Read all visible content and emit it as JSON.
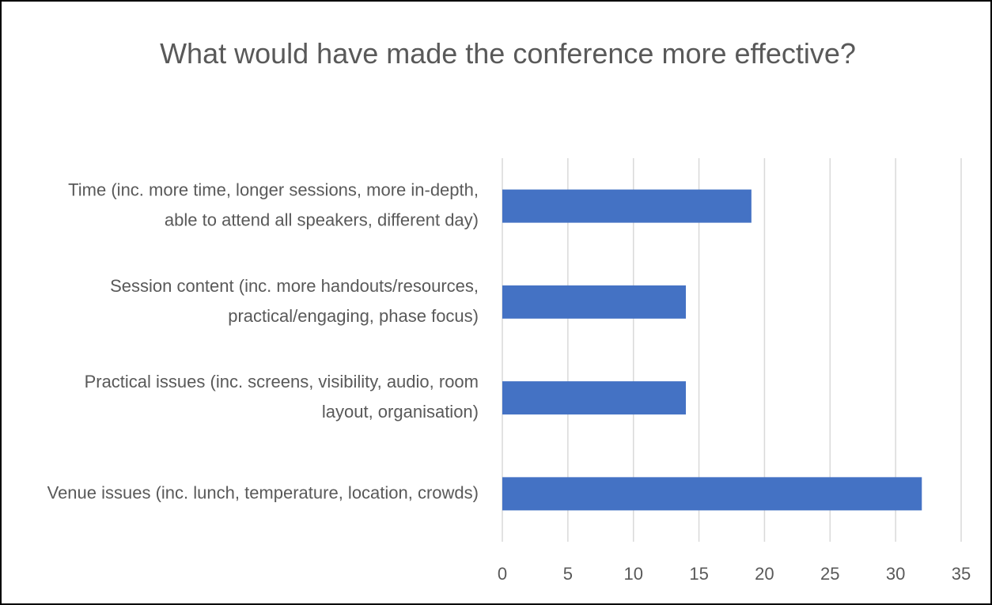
{
  "chart_data": {
    "type": "bar",
    "orientation": "horizontal",
    "title": "What would have made the conference more effective?",
    "categories": [
      "Time (inc. more time, longer sessions, more in-depth, able to attend all speakers, different day)",
      "Session content (inc. more handouts/resources, practical/engaging, phase focus)",
      "Practical issues (inc. screens, visibility, audio, room layout, organisation)",
      "Venue issues (inc. lunch, temperature, location, crowds)"
    ],
    "values": [
      19,
      14,
      14,
      32
    ],
    "color": "#4472c4",
    "xlim": [
      0,
      35
    ],
    "xticks": [
      0,
      5,
      10,
      15,
      20,
      25,
      30,
      35
    ],
    "grid": true
  }
}
